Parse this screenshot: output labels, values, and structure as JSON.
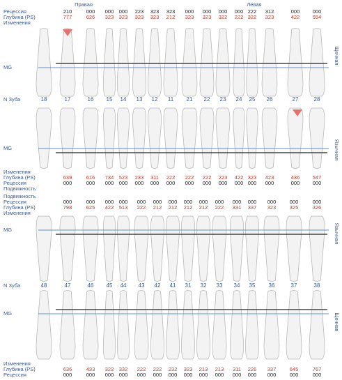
{
  "labels": {
    "tooth_number": "N Зуба",
    "mg": "MG",
    "right": "Правая",
    "left": "Левая"
  },
  "upper_teeth": [
    "18",
    "17",
    "16",
    "15",
    "14",
    "13",
    "12",
    "11",
    "21",
    "22",
    "23",
    "24",
    "25",
    "26",
    "27",
    "28"
  ],
  "lower_teeth": [
    "48",
    "47",
    "46",
    "45",
    "44",
    "43",
    "42",
    "41",
    "31",
    "32",
    "33",
    "34",
    "35",
    "36",
    "37",
    "38"
  ],
  "panels": [
    {
      "side": "Щечная",
      "rows": [
        {
          "label": "Рецессия",
          "color": "#222222",
          "values": [
            null,
            "210",
            "000",
            "000",
            "000",
            "223",
            "323",
            "323",
            "000",
            "000",
            "000",
            "000",
            "222",
            "312",
            "000",
            "000"
          ]
        },
        {
          "label": "Глубина (PS)",
          "color": "#c0392b",
          "values": [
            null,
            "777",
            "626",
            "323",
            "323",
            "323",
            "323",
            "212",
            "323",
            "323",
            "322",
            "222",
            "322",
            "323",
            "422",
            "554"
          ]
        },
        {
          "label": "Изменения"
        }
      ]
    },
    {
      "side": "Язычная",
      "rows": [
        {
          "label": "Изменения"
        },
        {
          "label": "Глубина (PS)",
          "color": "#c0392b",
          "values": [
            null,
            "639",
            "616",
            "734",
            "523",
            "233",
            "311",
            "222",
            "222",
            "222",
            "223",
            "422",
            "323",
            "423",
            "436",
            "547"
          ]
        },
        {
          "label": "Рецессия",
          "color": "#222222",
          "values": [
            null,
            "000",
            "000",
            "000",
            "000",
            "000",
            "000",
            "000",
            "000",
            "000",
            "000",
            "000",
            "000",
            "000",
            "000",
            "000"
          ]
        },
        {
          "label": "Подвижность"
        }
      ]
    },
    {
      "side": "Язычная",
      "rows": [
        {
          "label": "Подвижность"
        },
        {
          "label": "Рецессия",
          "color": "#222222",
          "values": [
            null,
            "000",
            "000",
            "000",
            "000",
            "000",
            "000",
            "000",
            "000",
            "000",
            "000",
            "000",
            "000",
            "000",
            "000",
            "000"
          ]
        },
        {
          "label": "Глубина (PS)",
          "color": "#c0392b",
          "values": [
            null,
            "798",
            "625",
            "422",
            "513",
            "222",
            "212",
            "212",
            "212",
            "212",
            "222",
            "331",
            "337",
            "323",
            "325",
            "326"
          ]
        },
        {
          "label": "Изменения"
        }
      ]
    },
    {
      "side": "Щечная",
      "rows": [
        {
          "label": "Изменения"
        },
        {
          "label": "Глубина (PS)",
          "color": "#c0392b",
          "values": [
            null,
            "636",
            "433",
            "322",
            "332",
            "222",
            "222",
            "232",
            "323",
            "213",
            "213",
            "311",
            "226",
            "337",
            "645",
            "767"
          ]
        },
        {
          "label": "Рецессия",
          "color": "#222222",
          "values": [
            null,
            "000",
            "000",
            "000",
            "000",
            "000",
            "000",
            "000",
            "000",
            "000",
            "000",
            "000",
            "000",
            "000",
            "000",
            "000"
          ]
        }
      ]
    }
  ]
}
